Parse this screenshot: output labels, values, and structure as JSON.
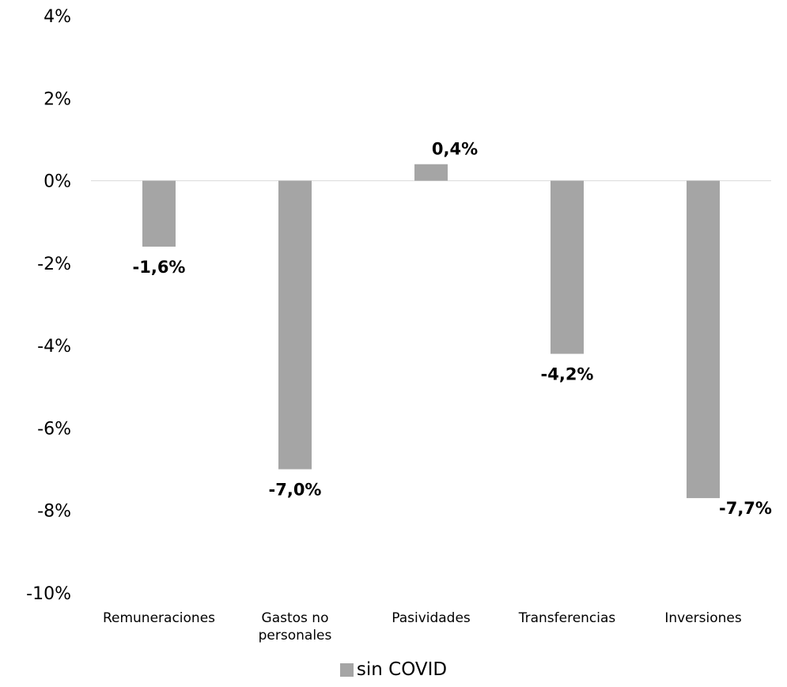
{
  "chart_data": {
    "type": "bar",
    "categories": [
      "Remuneraciones",
      "Gastos no personales",
      "Pasividades",
      "Transferencias",
      "Inversiones"
    ],
    "series": [
      {
        "name": "sin COVID",
        "values": [
          -1.6,
          -7.0,
          0.4,
          -4.2,
          -7.7
        ],
        "labels": [
          "-1,6%",
          "-7,0%",
          "0,4%",
          "-4,2%",
          "-7,7%"
        ],
        "color": "#a5a5a5"
      }
    ],
    "ylim": [
      -10,
      4
    ],
    "yticks": [
      4,
      2,
      0,
      -2,
      -4,
      -6,
      -8,
      -10
    ],
    "ytick_labels": [
      "4%",
      "2%",
      "0%",
      "-2%",
      "-4%",
      "-6%",
      "-8%",
      "-10%"
    ],
    "legend_position": "bottom",
    "grid": false
  },
  "legend": {
    "label": "sin COVID"
  }
}
